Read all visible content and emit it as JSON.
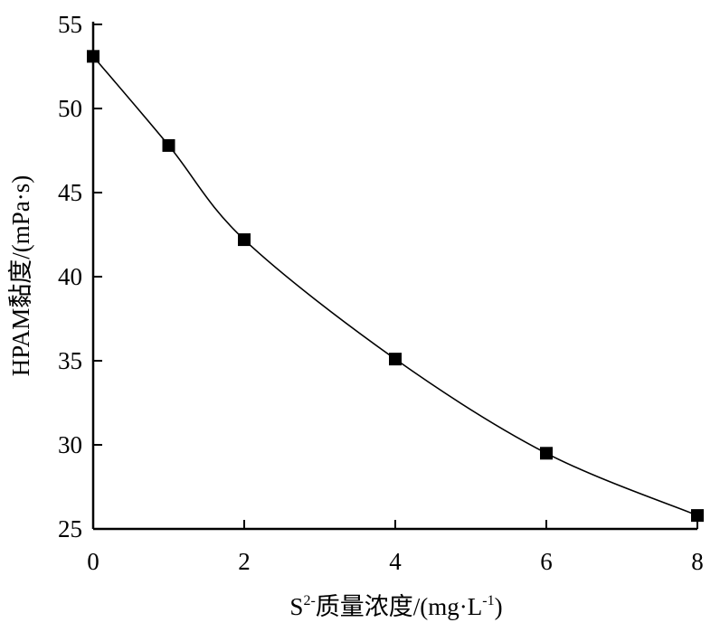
{
  "chart_data": {
    "type": "line",
    "xlabel": {
      "base": "S",
      "sup": "2-",
      "rest": "质量浓度/(mg·L",
      "sup2": "-1",
      "end": ")"
    },
    "ylabel": "HPAM黏度/(mPa·s)",
    "xlim": [
      0,
      8
    ],
    "ylim": [
      25,
      55
    ],
    "x_ticks": [
      "0",
      "2",
      "4",
      "6",
      "8"
    ],
    "y_ticks": [
      "25",
      "30",
      "35",
      "40",
      "45",
      "50",
      "55"
    ],
    "grid": false,
    "marker": "square",
    "fit_curve": true,
    "x": [
      0,
      1,
      2,
      4,
      6,
      8
    ],
    "y": [
      53.1,
      47.8,
      42.2,
      35.1,
      29.5,
      25.8
    ],
    "color": "#000000"
  }
}
